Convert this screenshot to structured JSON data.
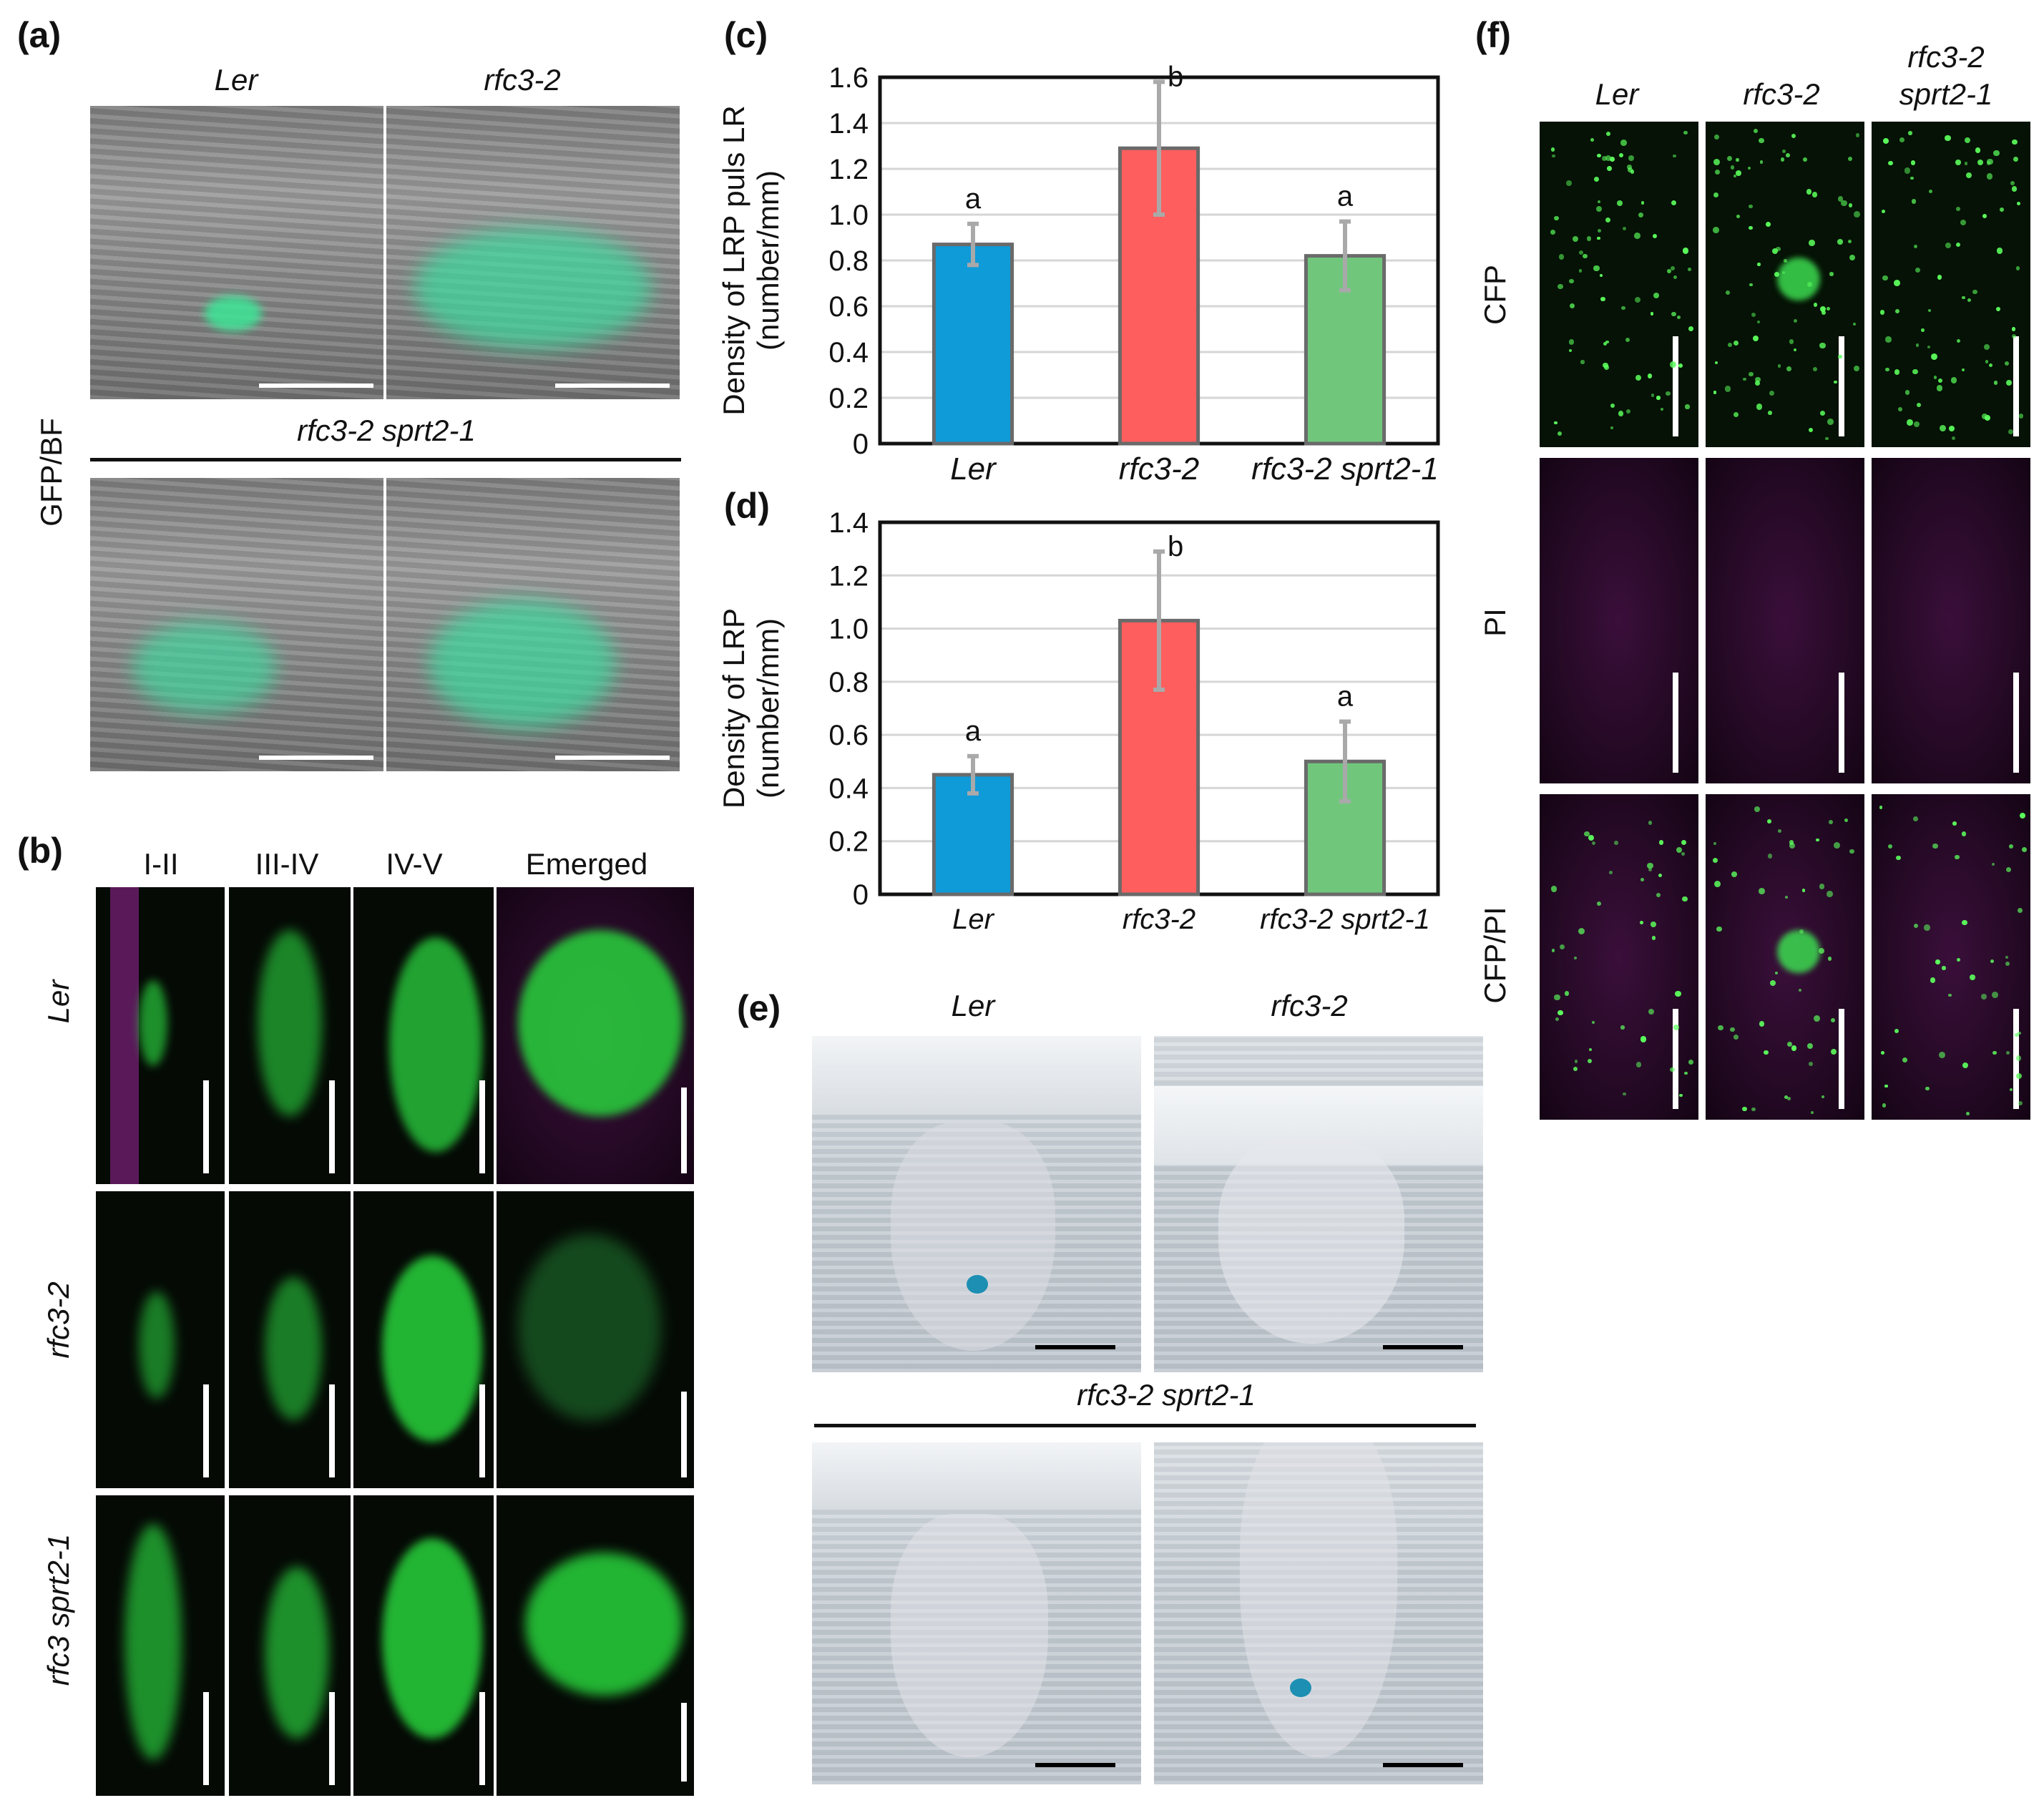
{
  "panels": {
    "a": {
      "label": "(a)",
      "col1": "Ler",
      "col2": "rfc3-2",
      "row2": "rfc3-2 sprt2-1",
      "side": "GFP/BF"
    },
    "b": {
      "label": "(b)",
      "cols": [
        "I-II",
        "III-IV",
        "IV-V",
        "Emerged"
      ],
      "rows": [
        "Ler",
        "rfc3-2",
        "rfc3 sprt2-1"
      ]
    },
    "e": {
      "label": "(e)",
      "col1": "Ler",
      "col2": "rfc3-2",
      "row2": "rfc3-2 sprt2-1"
    },
    "f": {
      "label": "(f)",
      "cols": [
        "Ler",
        "rfc3-2",
        "rfc3-2",
        "sprt2-1"
      ],
      "rows": [
        "CFP",
        "PI",
        "CFP/PI"
      ]
    }
  },
  "chart_data": [
    {
      "panel": "(c)",
      "type": "bar",
      "categories": [
        "Ler",
        "rfc3-2",
        "rfc3-2 sprt2-1"
      ],
      "values": [
        0.87,
        1.29,
        0.82
      ],
      "errors": [
        0.09,
        0.29,
        0.15
      ],
      "letters": [
        "a",
        "b",
        "a"
      ],
      "colors": [
        "#0f9ad8",
        "#ff5e5e",
        "#70c77c"
      ],
      "ylabel_line1": "Density of LRP puls LR",
      "ylabel_line2": "(number/mm)",
      "ylim": [
        0,
        1.6
      ],
      "yticks": [
        "0",
        "0.2",
        "0.4",
        "0.6",
        "0.8",
        "1.0",
        "1.2",
        "1.4",
        "1.6"
      ],
      "grid": true
    },
    {
      "panel": "(d)",
      "type": "bar",
      "categories": [
        "Ler",
        "rfc3-2",
        "rfc3-2 sprt2-1"
      ],
      "values": [
        0.45,
        1.03,
        0.5
      ],
      "errors": [
        0.07,
        0.26,
        0.15
      ],
      "letters": [
        "a",
        "b",
        "a"
      ],
      "colors": [
        "#0f9ad8",
        "#ff5e5e",
        "#70c77c"
      ],
      "ylabel_line1": "Density of LRP",
      "ylabel_line2": "(number/mm)",
      "ylim": [
        0,
        1.4
      ],
      "yticks": [
        "0",
        "0.2",
        "0.4",
        "0.6",
        "0.8",
        "1.0",
        "1.2",
        "1.4"
      ],
      "grid": true
    }
  ]
}
